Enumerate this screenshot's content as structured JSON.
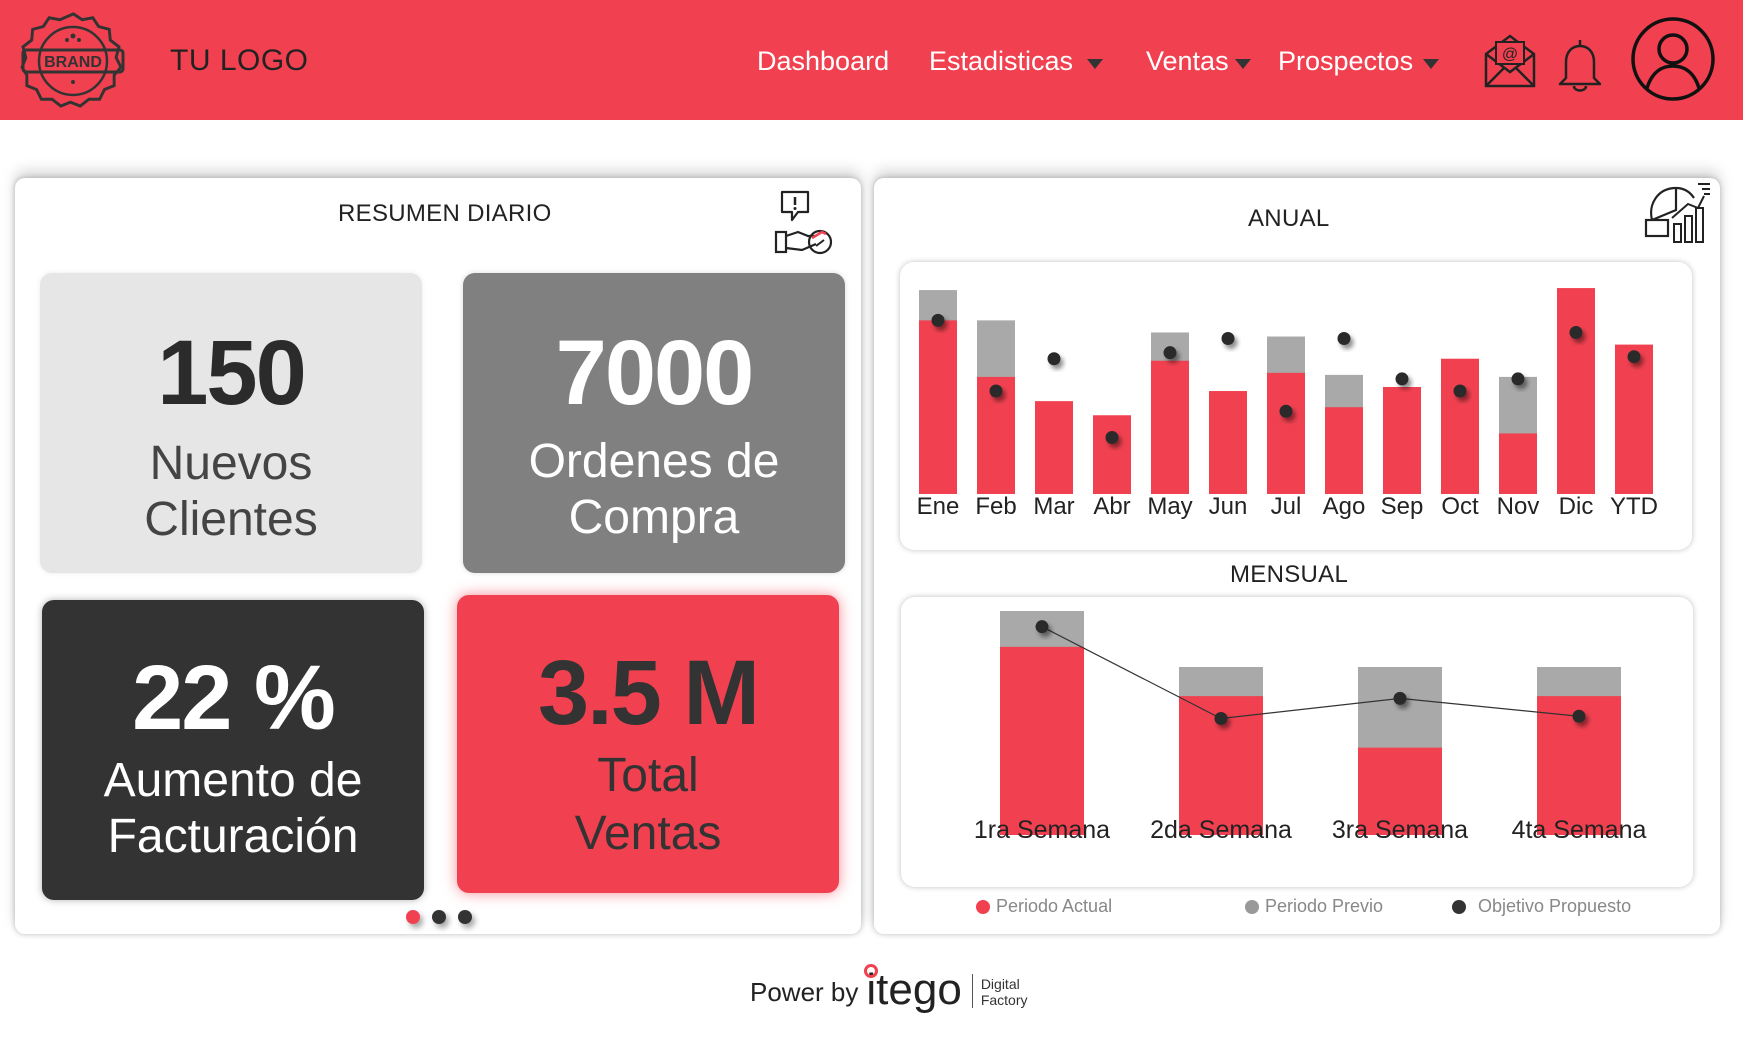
{
  "header": {
    "brand_badge_text": "BRAND",
    "logo_text": "TU LOGO",
    "nav": [
      {
        "label": "Dashboard",
        "has_caret": false
      },
      {
        "label": "Estadisticas",
        "has_caret": true
      },
      {
        "label": "Ventas",
        "has_caret": true
      },
      {
        "label": "Prospectos",
        "has_caret": true
      }
    ],
    "icons": [
      "mail-icon",
      "bell-icon",
      "user-profile-icon"
    ],
    "accent_color": "#f14150"
  },
  "resumen": {
    "title": "RESUMEN DIARIO",
    "icon": "hand-money-alert-icon",
    "kpis": [
      {
        "value": "150",
        "label_line1": "Nuevos",
        "label_line2": "Clientes",
        "bg": "#e6e6e6",
        "fg": "#2b2b2b",
        "label_color": "#444"
      },
      {
        "value": "7000",
        "label_line1": "Ordenes de",
        "label_line2": "Compra",
        "bg": "#808080",
        "fg": "#ffffff",
        "label_color": "#ffffff"
      },
      {
        "value": "22 %",
        "label_line1": "Aumento de",
        "label_line2": "Facturación",
        "bg": "#333333",
        "fg": "#ffffff",
        "label_color": "#ffffff"
      },
      {
        "value": "3.5 M",
        "label_line1": "Total",
        "label_line2": "Ventas",
        "bg": "#f14150",
        "fg": "#333333",
        "label_color": "#333333"
      }
    ],
    "pager_active": 0,
    "pager_count": 3
  },
  "anual": {
    "title": "ANUAL",
    "icon": "analytics-chart-icon"
  },
  "mensual": {
    "title": "MENSUAL"
  },
  "legend": [
    {
      "label": "Periodo Actual",
      "color": "#f14150"
    },
    {
      "label": "Periodo Previo",
      "color": "#999999"
    },
    {
      "label": "Objetivo Propuesto",
      "color": "#333333"
    }
  ],
  "chart_data": [
    {
      "type": "bar",
      "title": "ANUAL",
      "categories": [
        "Ene",
        "Feb",
        "Mar",
        "Abr",
        "May",
        "Jun",
        "Jul",
        "Ago",
        "Sep",
        "Oct",
        "Nov",
        "Dic",
        "YTD"
      ],
      "series": [
        {
          "name": "Periodo Actual",
          "values": [
            86,
            58,
            46,
            39,
            66,
            51,
            60,
            43,
            53,
            67,
            30,
            102,
            74
          ]
        },
        {
          "name": "Periodo Previo",
          "values": [
            101,
            86,
            0,
            0,
            80,
            0,
            78,
            59,
            0,
            0,
            58,
            0,
            0
          ]
        },
        {
          "name": "Objetivo Propuesto",
          "values": [
            86,
            51,
            67,
            28,
            70,
            77,
            41,
            77,
            57,
            51,
            57,
            80,
            68
          ]
        }
      ],
      "ylim": [
        0,
        105
      ]
    },
    {
      "type": "bar",
      "title": "MENSUAL",
      "categories": [
        "1ra Semana",
        "2da Semana",
        "3ra Semana",
        "4ta Semana"
      ],
      "series": [
        {
          "name": "Periodo Actual",
          "values": [
            84,
            62,
            39,
            62
          ]
        },
        {
          "name": "Periodo Previo",
          "values": [
            100,
            75,
            75,
            75
          ]
        },
        {
          "name": "Objetivo Propuesto",
          "values": [
            93,
            52,
            61,
            53
          ]
        }
      ],
      "ylim": [
        0,
        100
      ]
    }
  ],
  "footer": {
    "power_by": "Power by",
    "brand": "itego",
    "tag_line1": "Digital",
    "tag_line2": "Factory"
  }
}
